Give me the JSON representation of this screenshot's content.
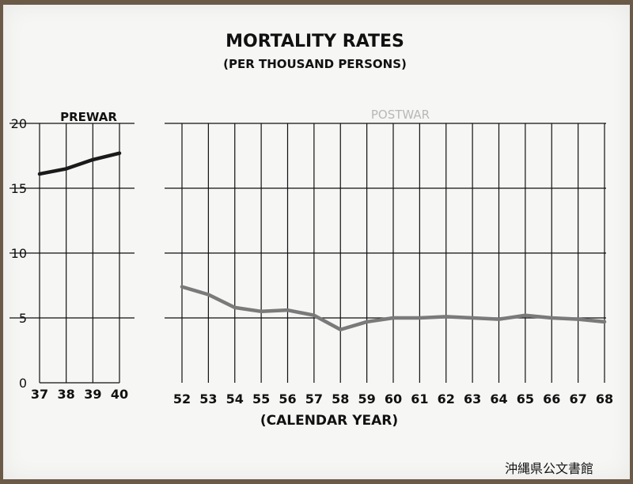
{
  "chart_data": {
    "type": "line",
    "title": "MORTALITY RATES",
    "subtitle": "(PER THOUSAND PERSONS)",
    "xlabel": "(CALENDAR YEAR)",
    "ylim": [
      0,
      20
    ],
    "yticks": [
      "0",
      "5",
      "10",
      "15",
      "20"
    ],
    "grid": true,
    "panels": [
      {
        "label": "PREWAR",
        "categories": [
          "37",
          "38",
          "39",
          "40"
        ],
        "values": [
          16.1,
          16.5,
          17.2,
          17.7
        ]
      },
      {
        "label": "POSTWAR",
        "categories": [
          "52",
          "53",
          "54",
          "55",
          "56",
          "57",
          "58",
          "59",
          "60",
          "61",
          "62",
          "63",
          "64",
          "65",
          "66",
          "67",
          "68"
        ],
        "values": [
          7.4,
          6.8,
          5.8,
          5.5,
          5.6,
          5.2,
          4.1,
          4.7,
          5.0,
          5.0,
          5.1,
          5.0,
          4.9,
          5.2,
          5.0,
          4.9,
          4.7
        ]
      }
    ]
  },
  "watermark": "沖縄県公文書館",
  "colors": {
    "board": "#f6f6f4",
    "grid": "#111111",
    "prewar_line": "#1a1a1a",
    "postwar_line": "#7a7a7a"
  }
}
